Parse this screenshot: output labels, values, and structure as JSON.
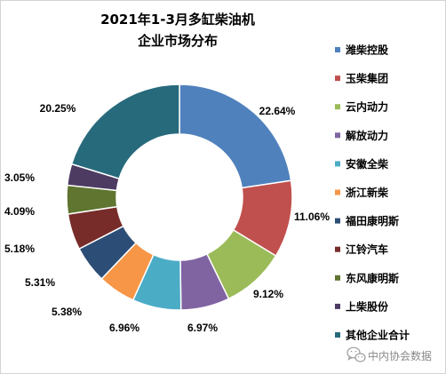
{
  "chart_data": {
    "type": "pie",
    "donut": true,
    "title": [
      "2021年1-3月多缸柴油机",
      "企业市场分布"
    ],
    "categories": [
      "潍柴控股",
      "玉柴集团",
      "云内动力",
      "解放动力",
      "安徽全柴",
      "浙江新柴",
      "福田康明斯",
      "江铃汽车",
      "东风康明斯",
      "上柴股份",
      "其他企业合计"
    ],
    "values": [
      22.64,
      11.06,
      9.12,
      6.97,
      6.96,
      5.38,
      5.31,
      5.18,
      4.09,
      3.05,
      20.25
    ],
    "unit": "%",
    "colors": [
      "#4F81BD",
      "#C0504D",
      "#9BBB59",
      "#8064A2",
      "#4BACC6",
      "#F79646",
      "#2C4D75",
      "#772C2A",
      "#5F7530",
      "#4D3B62",
      "#276A7C"
    ],
    "legend": "right"
  },
  "watermark": {
    "icon": "wechat-icon",
    "text": "中内协会数据"
  }
}
